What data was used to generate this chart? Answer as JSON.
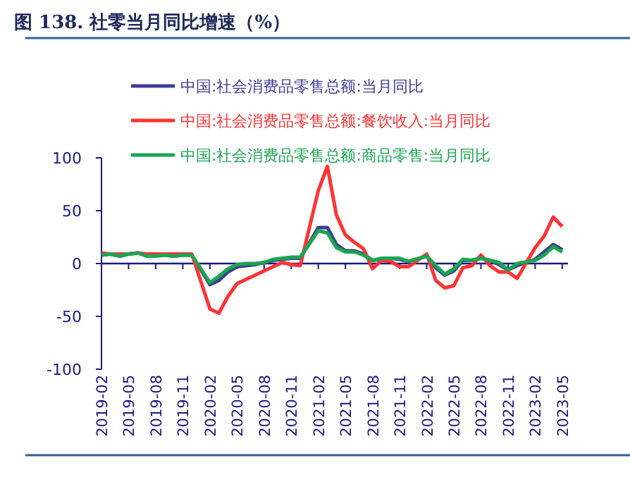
{
  "chart_data": {
    "type": "line",
    "title": "图 138. 社零当月同比增速（%）",
    "x": [
      "2019-02",
      "2019-03",
      "2019-04",
      "2019-05",
      "2019-06",
      "2019-07",
      "2019-08",
      "2019-09",
      "2019-10",
      "2019-11",
      "2019-12",
      "2020-02",
      "2020-03",
      "2020-04",
      "2020-05",
      "2020-06",
      "2020-07",
      "2020-08",
      "2020-09",
      "2020-10",
      "2020-11",
      "2020-12",
      "2021-02",
      "2021-03",
      "2021-04",
      "2021-05",
      "2021-06",
      "2021-07",
      "2021-08",
      "2021-09",
      "2021-10",
      "2021-11",
      "2021-12",
      "2022-02",
      "2022-03",
      "2022-04",
      "2022-05",
      "2022-06",
      "2022-07",
      "2022-08",
      "2022-09",
      "2022-10",
      "2022-11",
      "2022-12",
      "2023-02",
      "2023-03",
      "2023-04",
      "2023-05"
    ],
    "series": [
      {
        "name": "中国:社会消费品零售总额:当月同比",
        "color": "#3c3c96",
        "values": [
          8,
          9,
          7,
          9,
          10,
          8,
          8,
          8,
          7,
          8,
          8,
          -20,
          -16,
          -8,
          -3,
          -2,
          -1,
          1,
          3,
          4,
          5,
          5,
          34,
          34,
          18,
          12,
          12,
          9,
          3,
          4,
          5,
          4,
          2,
          7,
          -4,
          -11,
          -7,
          3,
          3,
          5,
          3,
          -1,
          -6,
          -2,
          4,
          11,
          18,
          13
        ]
      },
      {
        "name": "中国:社会消费品零售总额:餐饮收入:当月同比",
        "color": "#ff3333",
        "values": [
          10,
          9,
          9,
          9,
          10,
          9,
          9,
          9,
          9,
          9,
          9,
          -43,
          -47,
          -31,
          -19,
          -15,
          -11,
          -7,
          -3,
          1,
          -1,
          -2,
          69,
          92,
          46,
          27,
          20,
          14,
          -5,
          3,
          2,
          -3,
          -3,
          9,
          -16,
          -23,
          -21,
          -4,
          -2,
          8,
          -2,
          -8,
          -8,
          -14,
          15,
          26,
          44,
          35
        ]
      },
      {
        "name": "中国:社会消费品零售总额:商品零售:当月同比",
        "color": "#1aa650",
        "values": [
          8,
          9,
          7,
          9,
          10,
          7,
          7,
          8,
          7,
          8,
          8,
          -18,
          -12,
          -5,
          -1,
          0,
          0,
          1,
          4,
          5,
          6,
          6,
          31,
          29,
          15,
          11,
          11,
          8,
          3,
          5,
          5,
          5,
          2,
          7,
          -2,
          -10,
          -5,
          4,
          3,
          5,
          3,
          1,
          -6,
          0,
          3,
          8,
          16,
          11
        ]
      }
    ],
    "xlim": [
      "2019-02",
      "2023-05-20"
    ],
    "xticks": [
      "2019-02",
      "2019-05",
      "2019-08",
      "2019-11",
      "2020-02",
      "2020-05",
      "2020-08",
      "2020-11",
      "2021-02",
      "2021-05",
      "2021-08",
      "2021-11",
      "2022-02",
      "2022-05",
      "2022-08",
      "2022-11",
      "2023-02",
      "2023-05"
    ],
    "ylim": [
      -100,
      100
    ],
    "yticks": [
      -100,
      -50,
      0,
      50,
      100
    ],
    "ref_lines": [
      {
        "axis": "y",
        "value": 0,
        "color": "#1a1a80",
        "line_style": "solid"
      }
    ],
    "grid": false,
    "legend": "top",
    "marker": "none",
    "line_style": "solid"
  }
}
